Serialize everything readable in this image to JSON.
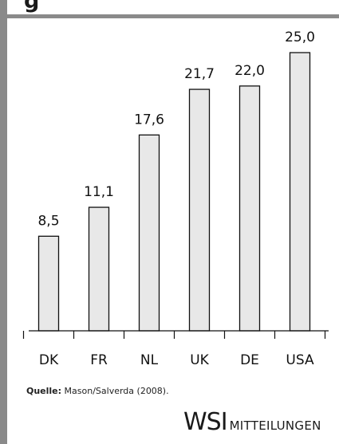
{
  "title": "g",
  "source": {
    "label": "Quelle:",
    "text": "Mason/Salverda (2008)."
  },
  "logo": {
    "main": "WSI",
    "sub": "MITTEILUNGEN"
  },
  "colors": {
    "bar_fill": "#e8e8e8",
    "bar_stroke": "#111111",
    "frame": "#8a8a8a"
  },
  "chart_data": {
    "type": "bar",
    "categories": [
      "DK",
      "FR",
      "NL",
      "UK",
      "DE",
      "USA"
    ],
    "values": [
      8.5,
      11.1,
      17.6,
      21.7,
      22.0,
      25.0
    ],
    "value_labels": [
      "8,5",
      "11,1",
      "17,6",
      "21,7",
      "22,0",
      "25,0"
    ],
    "title": "",
    "xlabel": "",
    "ylabel": "",
    "ylim": [
      0,
      25
    ],
    "grid": false,
    "legend": "none"
  }
}
